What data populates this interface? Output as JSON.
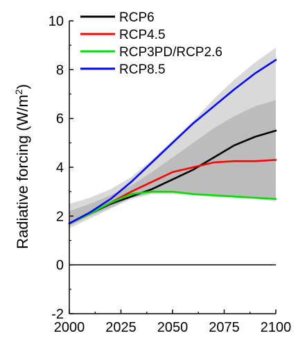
{
  "chart_data": {
    "type": "line",
    "ylabel": "Radiative forcing (W/m²)",
    "ylabel_main": "Radiative forcing (W/m",
    "ylabel_sup": "2",
    "ylabel_close": ")",
    "xlim": [
      2000,
      2100
    ],
    "ylim": [
      -2,
      10
    ],
    "x_ticks": [
      2000,
      2025,
      2050,
      2075,
      2100
    ],
    "y_ticks": [
      -2,
      0,
      2,
      4,
      6,
      8,
      10
    ],
    "grid": false,
    "legend_position": "top-left",
    "zero_line": true,
    "series": [
      {
        "name": "RCP6",
        "color": "#000000",
        "x": [
          2000,
          2010,
          2020,
          2030,
          2040,
          2050,
          2060,
          2070,
          2080,
          2090,
          2100
        ],
        "y": [
          1.7,
          2.1,
          2.5,
          2.8,
          3.1,
          3.5,
          3.9,
          4.4,
          4.9,
          5.25,
          5.5
        ]
      },
      {
        "name": "RCP4.5",
        "color": "#ff0000",
        "x": [
          2000,
          2010,
          2020,
          2030,
          2040,
          2050,
          2060,
          2070,
          2080,
          2090,
          2100
        ],
        "y": [
          1.7,
          2.1,
          2.55,
          3.0,
          3.4,
          3.8,
          4.0,
          4.2,
          4.25,
          4.25,
          4.3
        ]
      },
      {
        "name": "RCP3PD/RCP2.6",
        "color": "#00e000",
        "x": [
          2000,
          2010,
          2020,
          2030,
          2040,
          2050,
          2060,
          2070,
          2080,
          2090,
          2100
        ],
        "y": [
          1.7,
          2.1,
          2.55,
          2.9,
          3.0,
          3.0,
          2.9,
          2.85,
          2.8,
          2.75,
          2.7
        ]
      },
      {
        "name": "RCP8.5",
        "color": "#0000ff",
        "x": [
          2000,
          2010,
          2020,
          2030,
          2040,
          2050,
          2060,
          2070,
          2080,
          2090,
          2100
        ],
        "y": [
          1.7,
          2.15,
          2.7,
          3.4,
          4.2,
          5.0,
          5.8,
          6.5,
          7.2,
          7.85,
          8.4
        ]
      }
    ],
    "bands": [
      {
        "color": "#d9d9d9",
        "x": [
          2000,
          2010,
          2020,
          2030,
          2040,
          2050,
          2060,
          2070,
          2080,
          2090,
          2100
        ],
        "lower": [
          1.5,
          1.9,
          2.3,
          2.7,
          2.9,
          2.9,
          2.85,
          2.8,
          2.75,
          2.7,
          2.6
        ],
        "upper": [
          2.5,
          2.75,
          3.1,
          3.6,
          4.3,
          5.1,
          5.9,
          6.8,
          7.6,
          8.3,
          8.9
        ]
      },
      {
        "color": "#bcbcbc",
        "x": [
          2000,
          2010,
          2020,
          2030,
          2040,
          2050,
          2060,
          2070,
          2080,
          2090,
          2100
        ],
        "lower": [
          1.6,
          2.0,
          2.35,
          2.75,
          2.95,
          2.95,
          2.9,
          2.85,
          2.8,
          2.75,
          2.7
        ],
        "upper": [
          2.2,
          2.5,
          2.85,
          3.25,
          3.8,
          4.4,
          5.0,
          5.6,
          6.1,
          6.5,
          6.75
        ]
      }
    ]
  }
}
